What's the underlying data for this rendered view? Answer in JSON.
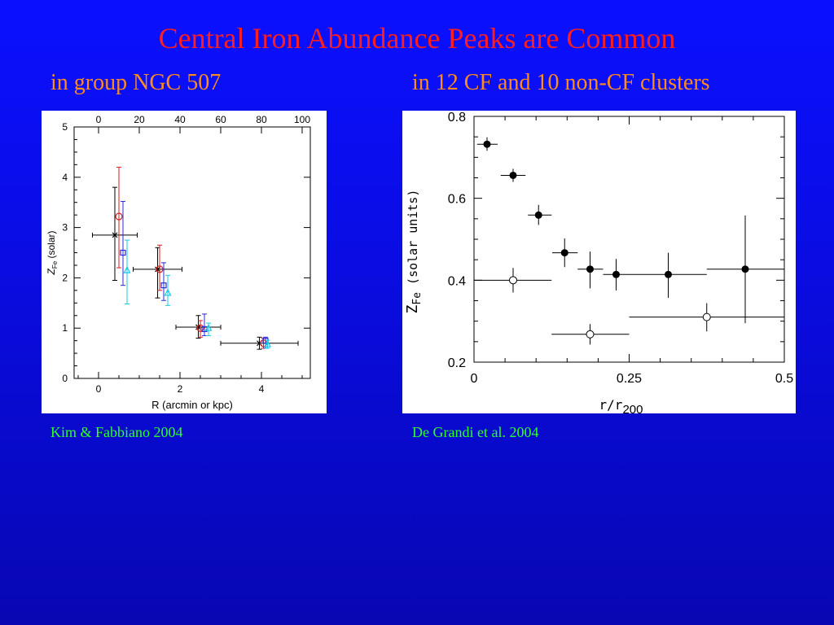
{
  "slide": {
    "title": "Central Iron Abundance Peaks are Common",
    "subtitle_left": "in group NGC 507",
    "subtitle_right": "in 12 CF and 10 non-CF clusters",
    "credit_left": "Kim & Fabbiano 2004",
    "credit_right": "De Grandi et al. 2004"
  },
  "colors": {
    "title": "#ff1e1e",
    "subtitle": "#ff8c1a",
    "credit": "#2cff2c",
    "background": "#0a10ff"
  },
  "chart_data": [
    {
      "type": "scatter",
      "xlabel": "R (arcmin or kpc)",
      "ylabel_main": "Z",
      "ylabel_sub": "Fe",
      "ylabel_suffix": "(solar)",
      "xlim": [
        -0.6,
        5.2
      ],
      "ylim": [
        0,
        5
      ],
      "xticks": [
        0,
        2,
        4
      ],
      "yticks": [
        0,
        1,
        2,
        3,
        4,
        5
      ],
      "top_axis_label_values": [
        0,
        20,
        40,
        60,
        80,
        100
      ],
      "top_axis_per_data_unit": 20,
      "grid": false,
      "series": [
        {
          "marker": "cross",
          "color": "#000000",
          "points": [
            {
              "x": 0.4,
              "y": 2.85,
              "xerr": 0.55,
              "ylo": 1.95,
              "yhi": 3.8
            },
            {
              "x": 1.45,
              "y": 2.17,
              "xerr": 0.6,
              "ylo": 1.6,
              "yhi": 2.6
            },
            {
              "x": 2.45,
              "y": 1.02,
              "xerr": 0.55,
              "ylo": 0.8,
              "yhi": 1.25
            },
            {
              "x": 3.95,
              "y": 0.7,
              "xerr": 0.95,
              "ylo": 0.58,
              "yhi": 0.82
            }
          ]
        },
        {
          "marker": "circle",
          "color": "#d62020",
          "points": [
            {
              "x": 0.5,
              "y": 3.22,
              "ylo": 2.2,
              "yhi": 4.2
            },
            {
              "x": 1.5,
              "y": 2.17,
              "ylo": 1.75,
              "yhi": 2.65
            },
            {
              "x": 2.5,
              "y": 1.0,
              "ylo": 0.82,
              "yhi": 1.15
            },
            {
              "x": 4.05,
              "y": 0.7,
              "ylo": 0.6,
              "yhi": 0.8
            }
          ]
        },
        {
          "marker": "square",
          "color": "#2a2ad8",
          "points": [
            {
              "x": 0.6,
              "y": 2.5,
              "ylo": 1.85,
              "yhi": 3.52
            },
            {
              "x": 1.6,
              "y": 1.85,
              "ylo": 1.55,
              "yhi": 2.3
            },
            {
              "x": 2.6,
              "y": 0.98,
              "ylo": 0.85,
              "yhi": 1.28
            },
            {
              "x": 4.1,
              "y": 0.75,
              "ylo": 0.6,
              "yhi": 0.82
            }
          ]
        },
        {
          "marker": "triangle",
          "color": "#19c8e6",
          "points": [
            {
              "x": 0.7,
              "y": 2.15,
              "ylo": 1.48,
              "yhi": 2.75
            },
            {
              "x": 1.7,
              "y": 1.7,
              "ylo": 1.45,
              "yhi": 2.05
            },
            {
              "x": 2.7,
              "y": 1.0,
              "ylo": 0.85,
              "yhi": 1.1
            },
            {
              "x": 4.15,
              "y": 0.68,
              "ylo": 0.6,
              "yhi": 0.76
            }
          ]
        }
      ]
    },
    {
      "type": "scatter",
      "xlabel_main": "r/r",
      "xlabel_sub": "200",
      "ylabel_main": "Z",
      "ylabel_sub": "Fe",
      "ylabel_suffix": "(solar units)",
      "xlim": [
        0,
        0.5
      ],
      "ylim": [
        0.2,
        0.8
      ],
      "xticks": [
        0,
        0.25,
        0.5
      ],
      "xtick_labels": [
        "0",
        "0.25",
        "0.5"
      ],
      "yticks": [
        0.2,
        0.4,
        0.6,
        0.8
      ],
      "ytick_labels": [
        "0.2",
        "0.4",
        "0.6",
        "0.8"
      ],
      "grid": false,
      "series": [
        {
          "marker": "filled-circle",
          "color": "#000000",
          "points": [
            {
              "x": 0.021,
              "y": 0.732,
              "x0": 0.005,
              "x1": 0.038,
              "ylo": 0.716,
              "yhi": 0.749
            },
            {
              "x": 0.063,
              "y": 0.656,
              "x0": 0.043,
              "x1": 0.083,
              "ylo": 0.64,
              "yhi": 0.672
            },
            {
              "x": 0.104,
              "y": 0.559,
              "x0": 0.087,
              "x1": 0.125,
              "ylo": 0.535,
              "yhi": 0.584
            },
            {
              "x": 0.146,
              "y": 0.467,
              "x0": 0.126,
              "x1": 0.167,
              "ylo": 0.432,
              "yhi": 0.502
            },
            {
              "x": 0.187,
              "y": 0.427,
              "x0": 0.167,
              "x1": 0.208,
              "ylo": 0.38,
              "yhi": 0.47
            },
            {
              "x": 0.229,
              "y": 0.414,
              "x0": 0.208,
              "x1": 0.25,
              "ylo": 0.375,
              "yhi": 0.452
            },
            {
              "x": 0.313,
              "y": 0.414,
              "x0": 0.25,
              "x1": 0.375,
              "ylo": 0.357,
              "yhi": 0.467
            },
            {
              "x": 0.437,
              "y": 0.427,
              "x0": 0.375,
              "x1": 0.5,
              "ylo": 0.295,
              "yhi": 0.558
            }
          ]
        },
        {
          "marker": "open-circle",
          "color": "#000000",
          "points": [
            {
              "x": 0.063,
              "y": 0.4,
              "x0": 0.0,
              "x1": 0.125,
              "ylo": 0.37,
              "yhi": 0.43
            },
            {
              "x": 0.187,
              "y": 0.268,
              "x0": 0.125,
              "x1": 0.25,
              "ylo": 0.243,
              "yhi": 0.293
            },
            {
              "x": 0.375,
              "y": 0.31,
              "x0": 0.25,
              "x1": 0.5,
              "ylo": 0.275,
              "yhi": 0.344
            }
          ]
        }
      ]
    }
  ]
}
